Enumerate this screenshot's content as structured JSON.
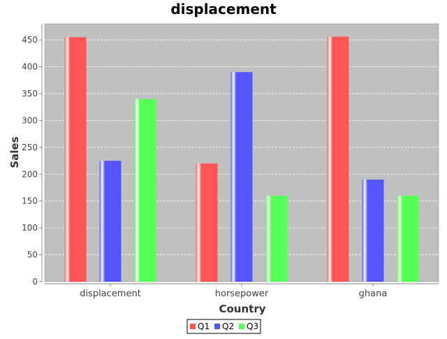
{
  "chart_data": {
    "type": "bar",
    "title": "displacement",
    "xlabel": "Country",
    "ylabel": "Sales",
    "categories": [
      "displacement",
      "horsepower",
      "ghana"
    ],
    "series": [
      {
        "name": "Q1",
        "values": [
          455,
          220,
          456
        ]
      },
      {
        "name": "Q2",
        "values": [
          225,
          390,
          190
        ]
      },
      {
        "name": "Q3",
        "values": [
          340,
          160,
          160
        ]
      }
    ],
    "ylim": [
      0,
      480
    ],
    "yticks": [
      0,
      50,
      100,
      150,
      200,
      250,
      300,
      350,
      400,
      450
    ],
    "grid": true,
    "legend_position": "bottom",
    "colors": {
      "Q1": "#ff5555",
      "Q2": "#5555ff",
      "Q3": "#55ff55",
      "plot_background": "#c0c0c0",
      "grid": "#ffffff"
    }
  }
}
